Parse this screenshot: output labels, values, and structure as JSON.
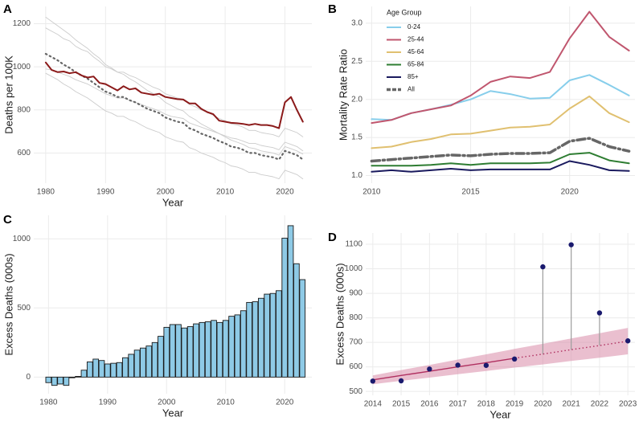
{
  "chart_data": [
    {
      "panel": "A",
      "type": "line",
      "x_label": "Year",
      "y_label": "Deaths per 100K",
      "x": [
        1980,
        1981,
        1982,
        1983,
        1984,
        1985,
        1986,
        1987,
        1988,
        1989,
        1990,
        1991,
        1992,
        1993,
        1994,
        1995,
        1996,
        1997,
        1998,
        1999,
        2000,
        2001,
        2002,
        2003,
        2004,
        2005,
        2006,
        2007,
        2008,
        2009,
        2010,
        2011,
        2012,
        2013,
        2014,
        2015,
        2016,
        2017,
        2018,
        2019,
        2020,
        2021,
        2022,
        2023
      ],
      "xlim": [
        1978,
        2024.5
      ],
      "xticks": [
        1980,
        1990,
        2000,
        2010,
        2020
      ],
      "ylim": [
        460,
        1280
      ],
      "yticks": [
        600,
        800,
        1000,
        1200
      ],
      "grid": true,
      "series": [
        {
          "color": "#cccccc",
          "values": [
            1180,
            1165,
            1150,
            1130,
            1120,
            1095,
            1080,
            1070,
            1045,
            1025,
            1000,
            990,
            975,
            975,
            960,
            950,
            935,
            920,
            905,
            895,
            875,
            865,
            855,
            850,
            825,
            815,
            800,
            790,
            775,
            760,
            750,
            735,
            730,
            720,
            705,
            705,
            695,
            690,
            685,
            675,
            715,
            705,
            695,
            675
          ]
        },
        {
          "color": "#cccccc",
          "values": [
            970,
            955,
            940,
            920,
            905,
            885,
            870,
            855,
            835,
            815,
            795,
            785,
            770,
            770,
            755,
            745,
            730,
            715,
            705,
            695,
            675,
            665,
            655,
            650,
            625,
            615,
            600,
            590,
            580,
            565,
            555,
            540,
            535,
            525,
            510,
            510,
            500,
            495,
            490,
            480,
            520,
            510,
            500,
            480
          ]
        },
        {
          "color": "#cccccc",
          "values": [
            1230,
            1210,
            1190,
            1170,
            1150,
            1125,
            1105,
            1085,
            1060,
            1040,
            1010,
            995,
            975,
            965,
            945,
            930,
            910,
            890,
            875,
            860,
            835,
            820,
            805,
            795,
            770,
            755,
            735,
            720,
            705,
            690,
            675,
            660,
            650,
            640,
            625,
            620,
            610,
            605,
            600,
            590,
            630,
            620,
            610,
            595
          ]
        },
        {
          "color": "#cccccc",
          "values": [
            990,
            985,
            975,
            965,
            955,
            940,
            930,
            920,
            905,
            890,
            875,
            865,
            855,
            855,
            845,
            835,
            825,
            815,
            805,
            795,
            780,
            770,
            765,
            760,
            740,
            730,
            720,
            710,
            700,
            690,
            680,
            670,
            665,
            655,
            645,
            645,
            635,
            630,
            625,
            615,
            650,
            640,
            630,
            610
          ]
        },
        {
          "color": "#666666",
          "style": "dotted",
          "values": [
            1060,
            1045,
            1030,
            1010,
            995,
            975,
            960,
            945,
            925,
            905,
            885,
            875,
            860,
            860,
            845,
            835,
            820,
            805,
            795,
            785,
            765,
            755,
            745,
            740,
            715,
            705,
            690,
            680,
            670,
            655,
            645,
            630,
            625,
            615,
            600,
            600,
            590,
            585,
            580,
            570,
            610,
            600,
            590,
            570
          ]
        },
        {
          "color": "#8b1a1a",
          "values": [
            1020,
            985,
            975,
            978,
            970,
            975,
            960,
            950,
            955,
            925,
            920,
            905,
            890,
            910,
            895,
            900,
            880,
            875,
            870,
            875,
            860,
            855,
            850,
            848,
            830,
            830,
            805,
            790,
            780,
            750,
            745,
            740,
            738,
            735,
            730,
            735,
            730,
            730,
            725,
            715,
            835,
            860,
            800,
            745
          ]
        }
      ]
    },
    {
      "panel": "B",
      "type": "line",
      "x_label": "",
      "y_label": "Mortality Rate Ratio",
      "x": [
        2010,
        2011,
        2012,
        2013,
        2014,
        2015,
        2016,
        2017,
        2018,
        2019,
        2020,
        2021,
        2022,
        2023
      ],
      "xlim": [
        2009.7,
        2023.3
      ],
      "xticks": [
        2010,
        2015,
        2020
      ],
      "ylim": [
        0.9,
        3.22
      ],
      "yticks": [
        {
          "value": 1,
          "label": "1.0"
        },
        1.5,
        {
          "value": 2,
          "label": "2.0"
        },
        2.5,
        {
          "value": 3,
          "label": "3.0"
        }
      ],
      "grid": true,
      "legend": "top-left",
      "legend_title": "Age Group",
      "series": [
        {
          "name": "0-24",
          "color": "#87ceeb",
          "values": [
            1.74,
            1.73,
            1.82,
            1.87,
            1.93,
            2.0,
            2.11,
            2.07,
            2.01,
            2.02,
            2.25,
            2.32,
            2.19,
            2.05
          ]
        },
        {
          "name": "25-44",
          "color": "#c0566e",
          "values": [
            1.69,
            1.73,
            1.82,
            1.87,
            1.92,
            2.05,
            2.23,
            2.3,
            2.28,
            2.36,
            2.8,
            3.15,
            2.82,
            2.64
          ]
        },
        {
          "name": "45-64",
          "color": "#e0c070",
          "values": [
            1.36,
            1.38,
            1.44,
            1.48,
            1.54,
            1.55,
            1.59,
            1.63,
            1.64,
            1.67,
            1.88,
            2.04,
            1.82,
            1.7
          ]
        },
        {
          "name": "65-84",
          "color": "#2e7d32",
          "values": [
            1.13,
            1.13,
            1.13,
            1.14,
            1.16,
            1.14,
            1.16,
            1.16,
            1.16,
            1.17,
            1.28,
            1.3,
            1.2,
            1.16
          ]
        },
        {
          "name": "85+",
          "color": "#1a1a5e",
          "values": [
            1.05,
            1.07,
            1.05,
            1.07,
            1.09,
            1.07,
            1.08,
            1.08,
            1.08,
            1.08,
            1.19,
            1.14,
            1.07,
            1.06
          ]
        },
        {
          "name": "All",
          "color": "#666666",
          "style": "dashed",
          "values": [
            1.19,
            1.21,
            1.23,
            1.25,
            1.27,
            1.26,
            1.28,
            1.29,
            1.29,
            1.3,
            1.45,
            1.49,
            1.38,
            1.32
          ]
        }
      ]
    },
    {
      "panel": "C",
      "type": "bar",
      "x_label": "Year",
      "y_label": "Excess Deaths (000s)",
      "x": [
        1980,
        1981,
        1982,
        1983,
        1984,
        1985,
        1986,
        1987,
        1988,
        1989,
        1990,
        1991,
        1992,
        1993,
        1994,
        1995,
        1996,
        1997,
        1998,
        1999,
        2000,
        2001,
        2002,
        2003,
        2004,
        2005,
        2006,
        2007,
        2008,
        2009,
        2010,
        2011,
        2012,
        2013,
        2014,
        2015,
        2016,
        2017,
        2018,
        2019,
        2020,
        2021,
        2022,
        2023
      ],
      "values": [
        -40,
        -60,
        -50,
        -60,
        -5,
        5,
        50,
        110,
        130,
        120,
        95,
        100,
        105,
        140,
        165,
        195,
        210,
        225,
        250,
        295,
        360,
        380,
        380,
        355,
        365,
        385,
        395,
        400,
        410,
        395,
        410,
        440,
        450,
        480,
        540,
        545,
        570,
        600,
        605,
        625,
        1005,
        1095,
        820,
        705
      ],
      "color": "#8ecae6",
      "xlim": [
        1977.5,
        2024.6
      ],
      "xticks": [
        1980,
        1990,
        2000,
        2010,
        2020
      ],
      "ylim": [
        -120,
        1170
      ],
      "yticks": [
        0,
        500,
        1000
      ],
      "grid": true
    },
    {
      "panel": "D",
      "type": "scatter",
      "x_label": "Year",
      "y_label": "Excess Deaths (000s)",
      "x": [
        2014,
        2015,
        2016,
        2017,
        2018,
        2019,
        2020,
        2021,
        2022,
        2023
      ],
      "values": [
        542,
        543,
        591,
        607,
        606,
        632,
        1008,
        1098,
        820,
        706
      ],
      "fit": [
        547,
        565,
        582,
        600,
        617,
        635,
        null,
        null,
        null,
        null
      ],
      "projection": [
        null,
        null,
        null,
        null,
        null,
        635,
        652,
        670,
        687,
        705
      ],
      "band_lower": [
        529,
        543,
        556,
        570,
        583,
        597,
        610,
        624,
        637,
        651
      ],
      "band_upper": [
        565,
        587,
        608,
        630,
        651,
        673,
        694,
        716,
        737,
        759
      ],
      "color": "#1a1a6e",
      "trend_color": "#b03060",
      "band_color": "#d98aa8",
      "xlim": [
        2013.75,
        2023.25
      ],
      "xticks": [
        2014,
        2015,
        2016,
        2017,
        2018,
        2019,
        2020,
        2021,
        2022,
        2023
      ],
      "ylim": [
        484,
        1146
      ],
      "yticks": [
        500,
        600,
        700,
        800,
        900,
        1000,
        1100
      ],
      "grid": true
    }
  ]
}
